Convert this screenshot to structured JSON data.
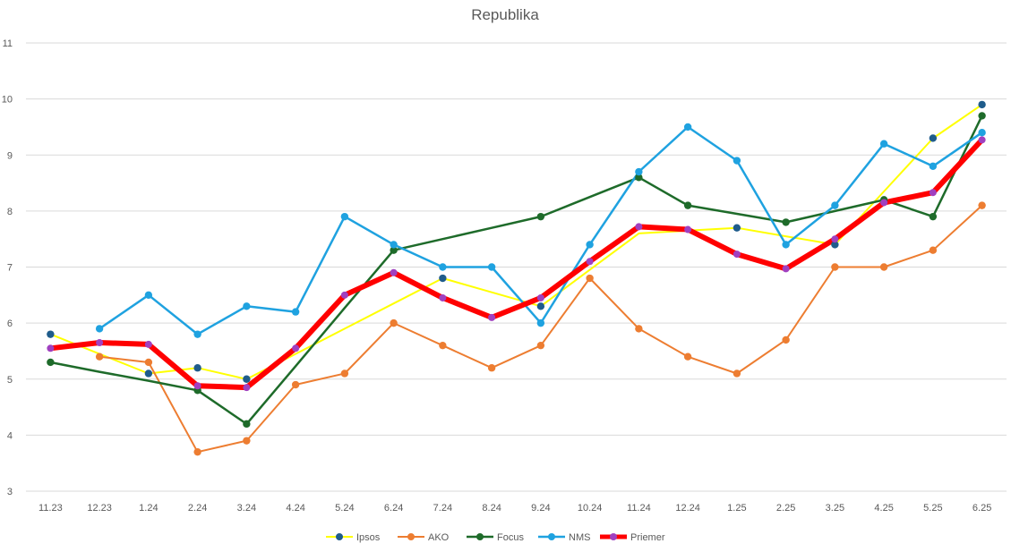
{
  "chart_data": {
    "type": "line",
    "title": "Republika",
    "xlabel": "",
    "ylabel": "",
    "ylim": [
      3,
      11
    ],
    "yticks": [
      "3",
      "4",
      "5",
      "6",
      "7",
      "8",
      "9",
      "10",
      "11"
    ],
    "grid": true,
    "legend_position": "bottom",
    "categories": [
      "11.23",
      "12.23",
      "1.24",
      "2.24",
      "3.24",
      "4.24",
      "5.24",
      "6.24",
      "7.24",
      "8.24",
      "9.24",
      "10.24",
      "11.24",
      "12.24",
      "1.25",
      "2.25",
      "3.25",
      "4.25",
      "5.25",
      "6.25"
    ],
    "series": [
      {
        "name": "Ipsos",
        "color": "#ffff00",
        "marker_color": "#1f5c8b",
        "line_width": 2,
        "values": [
          5.8,
          null,
          5.1,
          5.2,
          5.0,
          null,
          null,
          null,
          6.8,
          null,
          6.3,
          null,
          null,
          null,
          7.7,
          null,
          7.4,
          null,
          9.3,
          9.9
        ],
        "line_values": [
          5.8,
          5.45,
          5.1,
          5.2,
          5.0,
          5.45,
          5.9,
          6.35,
          6.8,
          6.55,
          6.3,
          6.95,
          7.6,
          7.65,
          7.7,
          7.55,
          7.4,
          8.35,
          9.3,
          9.9
        ]
      },
      {
        "name": "AKO",
        "color": "#ed7d31",
        "marker_color": "#ed7d31",
        "line_width": 2,
        "values": [
          null,
          5.4,
          5.3,
          3.7,
          3.9,
          4.9,
          5.1,
          6.0,
          5.6,
          5.2,
          5.6,
          6.8,
          5.9,
          5.4,
          5.1,
          5.7,
          7.0,
          7.0,
          7.3,
          8.1
        ]
      },
      {
        "name": "Focus",
        "color": "#1e6b2a",
        "marker_color": "#1e6b2a",
        "line_width": 2.5,
        "values": [
          5.3,
          null,
          null,
          4.8,
          4.2,
          null,
          null,
          7.3,
          null,
          null,
          7.9,
          null,
          8.6,
          8.1,
          null,
          7.8,
          null,
          8.2,
          7.9,
          9.7
        ],
        "line_values": [
          5.3,
          5.13,
          4.97,
          4.8,
          4.2,
          5.23,
          6.27,
          7.3,
          7.5,
          7.7,
          7.9,
          8.25,
          8.6,
          8.1,
          7.95,
          7.8,
          8.0,
          8.2,
          7.9,
          9.7
        ]
      },
      {
        "name": "NMS",
        "color": "#1fa2e0",
        "marker_color": "#1fa2e0",
        "line_width": 2.5,
        "values": [
          null,
          5.9,
          6.5,
          5.8,
          6.3,
          6.2,
          7.9,
          7.4,
          7.0,
          7.0,
          6.0,
          7.4,
          8.7,
          9.5,
          8.9,
          7.4,
          8.1,
          9.2,
          8.8,
          9.4
        ]
      },
      {
        "name": "Priemer",
        "color": "#ff0000",
        "marker_color": "#a040c0",
        "line_width": 6,
        "values": [
          5.55,
          5.65,
          5.62,
          4.88,
          4.85,
          5.55,
          6.5,
          6.9,
          6.45,
          6.1,
          6.45,
          7.1,
          7.72,
          7.67,
          7.23,
          6.97,
          7.5,
          8.15,
          8.33,
          9.27
        ]
      }
    ]
  }
}
